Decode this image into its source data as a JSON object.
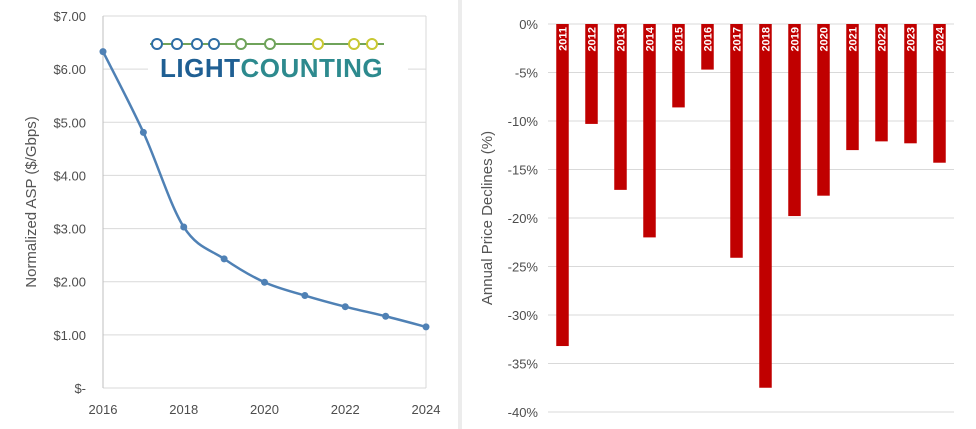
{
  "logo": {
    "part1": "LIGHT",
    "part2": "COUNTING",
    "color_part1": "#1f5f93",
    "color_part2": "#2d8a8e",
    "dot_colors": [
      "#2e6da4",
      "#2e6da4",
      "#2e6da4",
      "#2e6da4",
      "#6fa35a",
      "#6fa35a",
      "#c8c832",
      "#c8c832",
      "#c8c832"
    ]
  },
  "chart_data": [
    {
      "type": "line",
      "title": "",
      "xlabel": "",
      "ylabel": "Normalized ASP ($/Gbps)",
      "x": [
        2016,
        2017,
        2018,
        2019,
        2020,
        2021,
        2022,
        2023,
        2024
      ],
      "series": [
        {
          "values": [
            6.33,
            4.81,
            3.03,
            2.43,
            1.99,
            1.74,
            1.53,
            1.35,
            1.15
          ]
        }
      ],
      "xlim": [
        2016,
        2024
      ],
      "ylim": [
        0,
        7
      ],
      "xticks": [
        "2016",
        "2018",
        "2020",
        "2022",
        "2024"
      ],
      "yticks": [
        "$-",
        "$1.00",
        "$2.00",
        "$3.00",
        "$4.00",
        "$5.00",
        "$6.00",
        "$7.00"
      ],
      "line_color": "#4f81b5",
      "grid": true
    },
    {
      "type": "bar",
      "title": "",
      "xlabel": "",
      "ylabel": "Annual Price Declines (%)",
      "categories": [
        "2011",
        "2012",
        "2013",
        "2014",
        "2015",
        "2016",
        "2017",
        "2018",
        "2019",
        "2020",
        "2021",
        "2022",
        "2023",
        "2024"
      ],
      "values": [
        -33.2,
        -10.3,
        -17.1,
        -22.0,
        -8.6,
        -4.7,
        -24.1,
        -37.5,
        -19.8,
        -17.7,
        -13.0,
        -12.1,
        -12.3,
        -14.3
      ],
      "ylim": [
        -40,
        0
      ],
      "yticks": [
        "0%",
        "-5%",
        "-10%",
        "-15%",
        "-20%",
        "-25%",
        "-30%",
        "-35%",
        "-40%"
      ],
      "bar_color": "#c00000",
      "grid": true
    }
  ]
}
